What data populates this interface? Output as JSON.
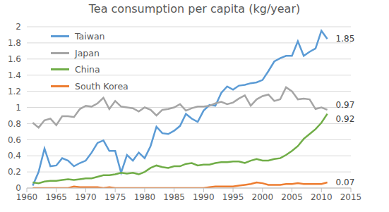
{
  "chart_data": {
    "type": "line",
    "title": "Tea consumption per capita (kg/year)",
    "x": [
      1961,
      1962,
      1963,
      1964,
      1965,
      1966,
      1967,
      1968,
      1969,
      1970,
      1971,
      1972,
      1973,
      1974,
      1975,
      1976,
      1977,
      1978,
      1979,
      1980,
      1981,
      1982,
      1983,
      1984,
      1985,
      1986,
      1987,
      1988,
      1989,
      1990,
      1991,
      1992,
      1993,
      1994,
      1995,
      1996,
      1997,
      1998,
      1999,
      2000,
      2001,
      2002,
      2003,
      2004,
      2005,
      2006,
      2007,
      2008,
      2009,
      2010,
      2011
    ],
    "series": [
      {
        "name": "Taiwan",
        "color": "#5b9bd5",
        "values": [
          0.03,
          0.2,
          0.49,
          0.27,
          0.28,
          0.37,
          0.34,
          0.27,
          0.31,
          0.34,
          0.44,
          0.56,
          0.59,
          0.46,
          0.46,
          0.19,
          0.41,
          0.34,
          0.44,
          0.37,
          0.52,
          0.76,
          0.68,
          0.67,
          0.71,
          0.77,
          0.92,
          0.86,
          0.82,
          0.96,
          1.03,
          1.02,
          1.18,
          1.26,
          1.22,
          1.27,
          1.28,
          1.3,
          1.31,
          1.34,
          1.45,
          1.57,
          1.61,
          1.64,
          1.64,
          1.82,
          1.64,
          1.69,
          1.73,
          1.95,
          1.85
        ]
      },
      {
        "name": "Japan",
        "color": "#a5a5a5",
        "values": [
          0.81,
          0.75,
          0.84,
          0.86,
          0.78,
          0.89,
          0.89,
          0.88,
          0.98,
          1.02,
          1.01,
          1.05,
          1.12,
          0.98,
          1.08,
          1.01,
          1.0,
          0.99,
          0.95,
          1.0,
          0.97,
          0.9,
          0.97,
          0.98,
          1.0,
          1.04,
          0.96,
          0.99,
          1.01,
          1.01,
          1.02,
          1.05,
          1.07,
          1.04,
          1.06,
          1.11,
          1.15,
          1.02,
          1.1,
          1.14,
          1.16,
          1.08,
          1.1,
          1.25,
          1.2,
          1.1,
          1.11,
          1.1,
          0.98,
          1.0,
          0.97
        ]
      },
      {
        "name": "China",
        "color": "#70ad47",
        "values": [
          0.07,
          0.06,
          0.08,
          0.09,
          0.09,
          0.1,
          0.11,
          0.1,
          0.11,
          0.12,
          0.12,
          0.14,
          0.16,
          0.16,
          0.17,
          0.19,
          0.18,
          0.19,
          0.17,
          0.2,
          0.25,
          0.28,
          0.26,
          0.25,
          0.27,
          0.27,
          0.3,
          0.31,
          0.28,
          0.29,
          0.29,
          0.31,
          0.32,
          0.32,
          0.33,
          0.33,
          0.31,
          0.34,
          0.36,
          0.34,
          0.34,
          0.36,
          0.37,
          0.41,
          0.46,
          0.52,
          0.61,
          0.67,
          0.73,
          0.81,
          0.92
        ]
      },
      {
        "name": "South Korea",
        "color": "#ed7d31",
        "values": [
          0,
          0,
          0,
          0,
          0,
          0,
          0,
          0.02,
          0.01,
          0.01,
          0.01,
          0.01,
          0,
          0.01,
          0,
          0,
          0,
          0,
          0,
          0,
          0,
          0,
          0,
          0,
          0,
          0,
          0,
          0,
          0,
          0,
          0.01,
          0.02,
          0.02,
          0.02,
          0.02,
          0.03,
          0.04,
          0.05,
          0.07,
          0.06,
          0.04,
          0.04,
          0.04,
          0.05,
          0.05,
          0.06,
          0.05,
          0.05,
          0.05,
          0.05,
          0.07
        ]
      }
    ],
    "xlim": [
      1960,
      2015
    ],
    "xticks": [
      1960,
      1965,
      1970,
      1975,
      1980,
      1985,
      1990,
      1995,
      2000,
      2005,
      2010,
      2015
    ],
    "ylim": [
      0,
      2
    ],
    "yticks": [
      0,
      0.2,
      0.4,
      0.6,
      0.8,
      1,
      1.2,
      1.4,
      1.6,
      1.8,
      2
    ],
    "grid": true,
    "legend": "upper left",
    "annotations": [
      {
        "text": "1.85",
        "x": 2011,
        "y": 1.85
      },
      {
        "text": "0.97",
        "x": 2011,
        "y": 0.97
      },
      {
        "text": "0.92",
        "x": 2011,
        "y": 0.92
      },
      {
        "text": "0.07",
        "x": 2011,
        "y": 0.07
      }
    ]
  }
}
